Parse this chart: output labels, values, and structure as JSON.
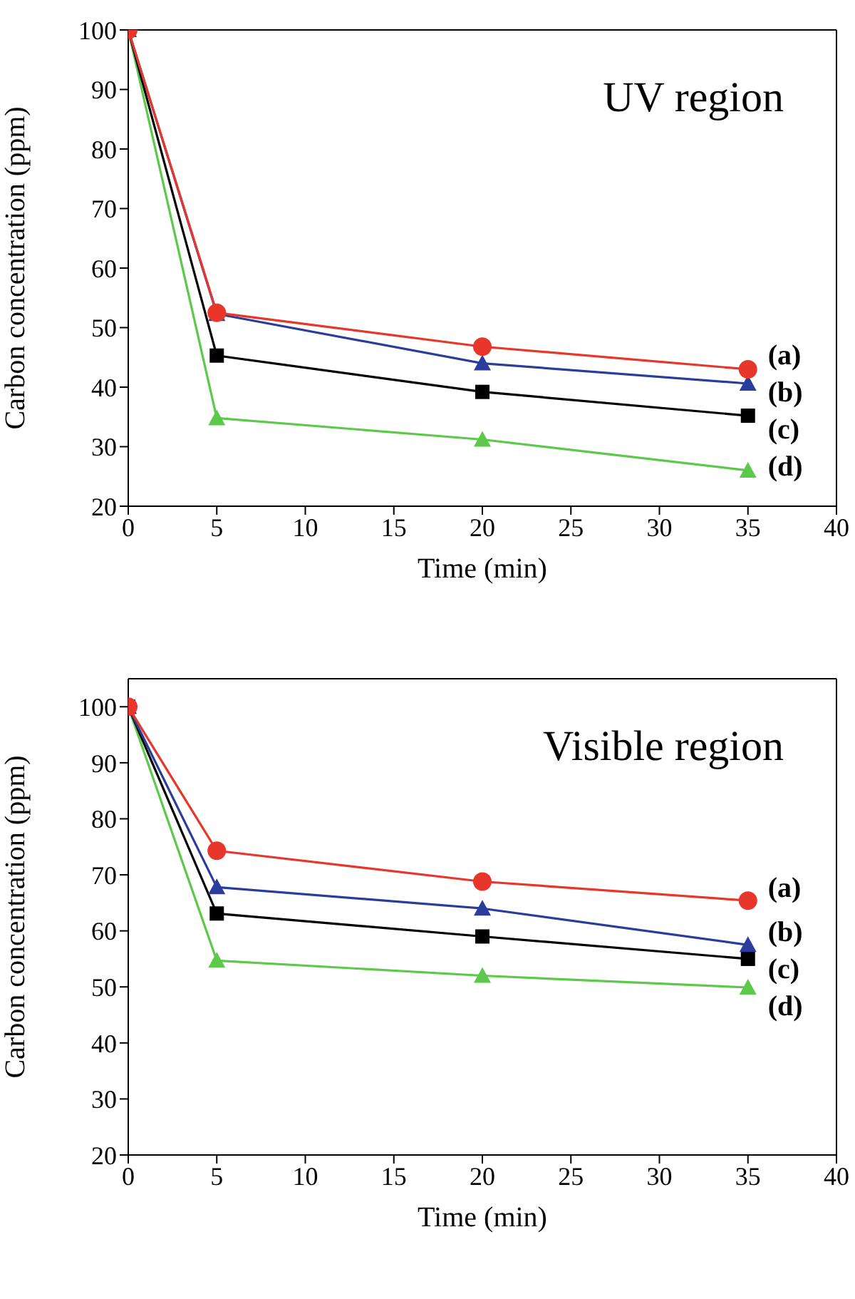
{
  "chart_data": [
    {
      "type": "line",
      "title": "UV region",
      "xlabel": "Time (min)",
      "ylabel": "Carbon concentration (ppm)",
      "x": [
        0,
        5,
        20,
        35
      ],
      "xlim": [
        0,
        40
      ],
      "xticks": [
        0,
        5,
        10,
        15,
        20,
        25,
        30,
        35,
        40
      ],
      "ylim": [
        20,
        100
      ],
      "yticks": [
        20,
        30,
        40,
        50,
        60,
        70,
        80,
        90,
        100
      ],
      "line_style": "solid",
      "series": [
        {
          "name": "(a)",
          "color": "#e8362b",
          "marker": "circle",
          "values": [
            100,
            52.5,
            46.8,
            43
          ]
        },
        {
          "name": "(b)",
          "color": "#2b3d9c",
          "marker": "triangle",
          "values": [
            100,
            52.3,
            44,
            40.6
          ]
        },
        {
          "name": "(c)",
          "color": "#000000",
          "marker": "square",
          "values": [
            100,
            45.3,
            39.2,
            35.2
          ]
        },
        {
          "name": "(d)",
          "color": "#5cc94a",
          "marker": "triangle",
          "values": [
            100,
            34.8,
            31.2,
            26
          ]
        }
      ]
    },
    {
      "type": "line",
      "title": "Visible region",
      "xlabel": "Time (min)",
      "ylabel": "Carbon concentration (ppm)",
      "x": [
        0,
        5,
        20,
        35
      ],
      "xlim": [
        0,
        40
      ],
      "xticks": [
        0,
        5,
        10,
        15,
        20,
        25,
        30,
        35,
        40
      ],
      "ylim": [
        20,
        105
      ],
      "yticks": [
        20,
        30,
        40,
        50,
        60,
        70,
        80,
        90,
        100
      ],
      "line_style": "solid",
      "series": [
        {
          "name": "(a)",
          "color": "#e8362b",
          "marker": "circle",
          "values": [
            100,
            74.3,
            68.8,
            65.4
          ]
        },
        {
          "name": "(b)",
          "color": "#2b3d9c",
          "marker": "triangle",
          "values": [
            100,
            67.8,
            64,
            57.5
          ]
        },
        {
          "name": "(c)",
          "color": "#000000",
          "marker": "square",
          "values": [
            100,
            63.1,
            59,
            55
          ]
        },
        {
          "name": "(d)",
          "color": "#5cc94a",
          "marker": "triangle",
          "values": [
            100,
            54.7,
            52,
            49.9
          ]
        }
      ]
    }
  ]
}
